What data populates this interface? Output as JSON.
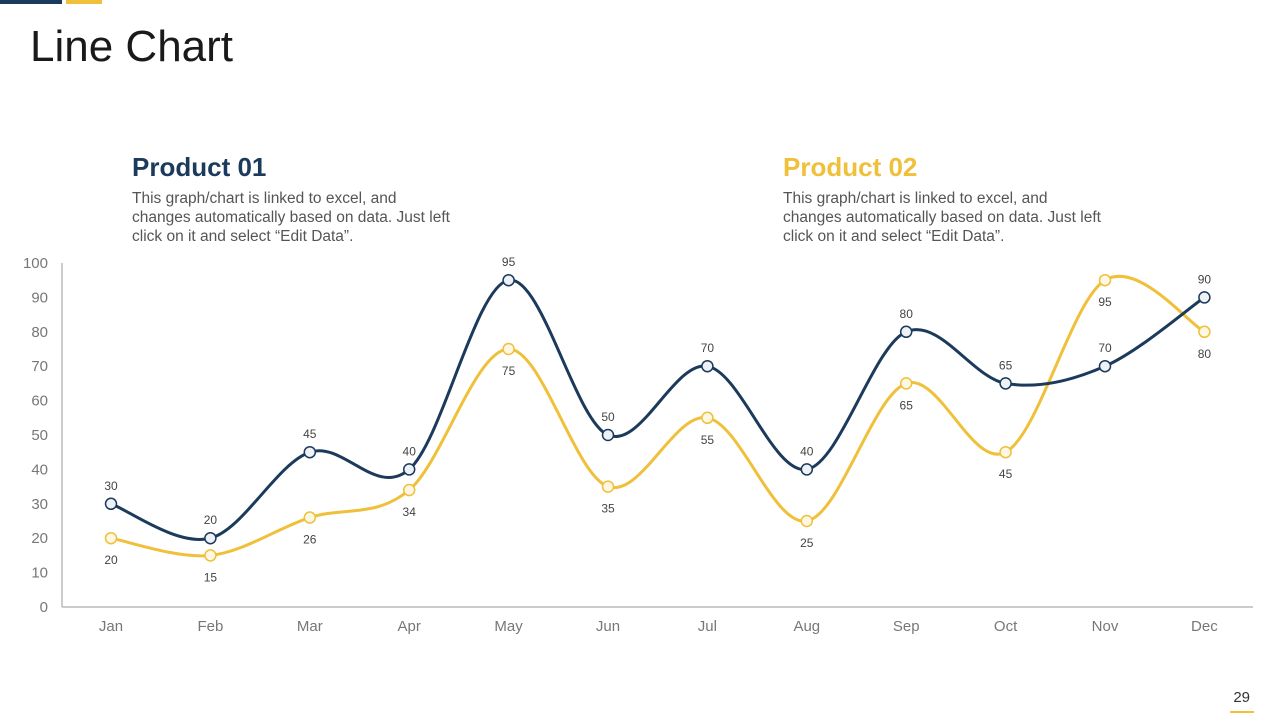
{
  "slide": {
    "title": "Line Chart",
    "page_number": "29"
  },
  "colors": {
    "navy": "#1b3a5c",
    "gold": "#f0c03a",
    "axis": "#999999",
    "tick_label": "#777777"
  },
  "products": [
    {
      "name": "Product 01",
      "description": "This graph/chart is linked to excel, and changes automatically based on data. Just left click on it and select “Edit Data”."
    },
    {
      "name": "Product 02",
      "description": "This graph/chart is linked to excel, and changes automatically based on data. Just left click on it and select “Edit Data”."
    }
  ],
  "chart_data": {
    "type": "line",
    "title": "",
    "xlabel": "",
    "ylabel": "",
    "categories": [
      "Jan",
      "Feb",
      "Mar",
      "Apr",
      "May",
      "Jun",
      "Jul",
      "Aug",
      "Sep",
      "Oct",
      "Nov",
      "Dec"
    ],
    "ylim": [
      0,
      100
    ],
    "yticks": [
      0,
      10,
      20,
      30,
      40,
      50,
      60,
      70,
      80,
      90,
      100
    ],
    "grid": false,
    "smooth": true,
    "series": [
      {
        "name": "Product 01",
        "values": [
          30,
          20,
          45,
          40,
          95,
          50,
          70,
          40,
          80,
          65,
          70,
          90
        ],
        "label_position": "above"
      },
      {
        "name": "Product 02",
        "values": [
          20,
          15,
          26,
          34,
          75,
          35,
          55,
          25,
          65,
          45,
          95,
          80
        ],
        "label_position": "below"
      }
    ]
  }
}
